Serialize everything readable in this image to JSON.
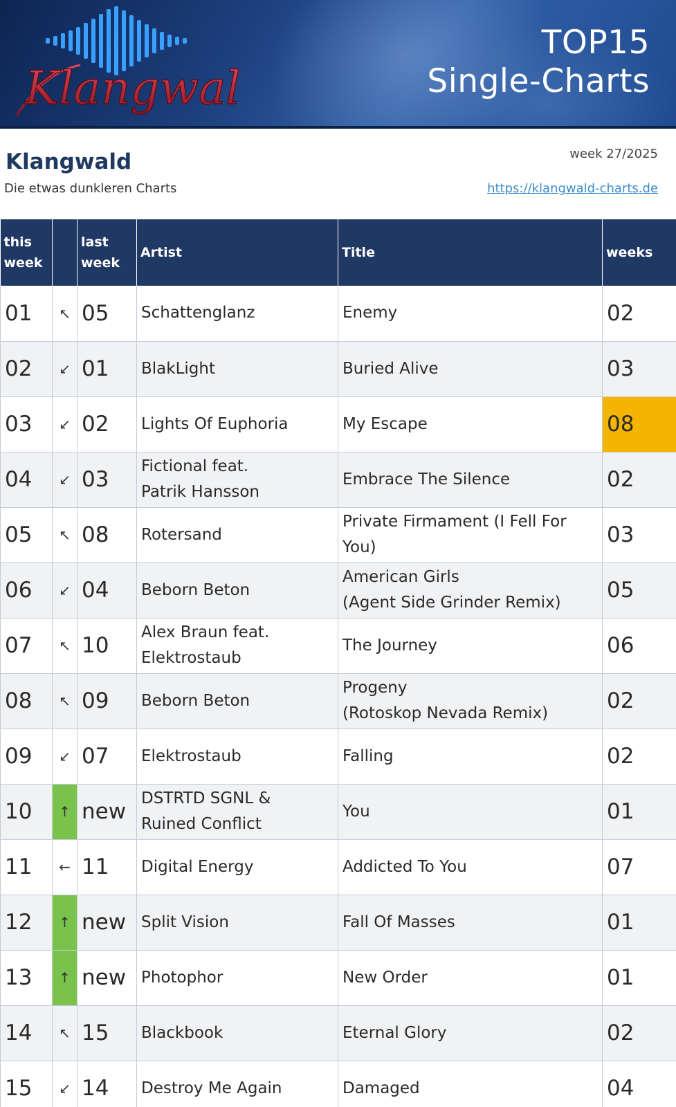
{
  "banner": {
    "logo_text": "Klangwald",
    "title_line1": "TOP15",
    "title_line2": "Single-Charts"
  },
  "header": {
    "site_name": "Klangwald",
    "tagline": "Die etwas dunkleren Charts",
    "week": "week 27/2025",
    "link": "https://klangwald-charts.de"
  },
  "table": {
    "columns": {
      "this_week": [
        "this",
        "week"
      ],
      "last_week": [
        "last",
        "week"
      ],
      "artist": "Artist",
      "title": "Title",
      "weeks": "weeks"
    },
    "rows": [
      {
        "pos": "01",
        "trend": "↖",
        "last": "05",
        "artist": "Schattenglanz",
        "title": "Enemy",
        "weeks": "02"
      },
      {
        "pos": "02",
        "trend": "↙",
        "last": "01",
        "artist": "BlakLight",
        "title": "Buried Alive",
        "weeks": "03"
      },
      {
        "pos": "03",
        "trend": "↙",
        "last": "02",
        "artist": "Lights Of Euphoria",
        "title": "My Escape",
        "weeks": "08",
        "weeks_highlight": true
      },
      {
        "pos": "04",
        "trend": "↙",
        "last": "03",
        "artist": "Fictional feat.\nPatrik Hansson",
        "title": "Embrace The Silence",
        "weeks": "02"
      },
      {
        "pos": "05",
        "trend": "↖",
        "last": "08",
        "artist": "Rotersand",
        "title": "Private Firmament (I Fell For You)",
        "weeks": "03"
      },
      {
        "pos": "06",
        "trend": "↙",
        "last": "04",
        "artist": "Beborn Beton",
        "title": "American Girls\n(Agent Side Grinder Remix)",
        "weeks": "05"
      },
      {
        "pos": "07",
        "trend": "↖",
        "last": "10",
        "artist": "Alex Braun feat.\nElektrostaub",
        "title": "The Journey",
        "weeks": "06"
      },
      {
        "pos": "08",
        "trend": "↖",
        "last": "09",
        "artist": "Beborn Beton",
        "title": "Progeny\n(Rotoskop Nevada Remix)",
        "weeks": "02"
      },
      {
        "pos": "09",
        "trend": "↙",
        "last": "07",
        "artist": "Elektrostaub",
        "title": "Falling",
        "weeks": "02"
      },
      {
        "pos": "10",
        "trend": "↑",
        "last": "new",
        "artist": "DSTRTD SGNL &\nRuined Conflict",
        "title": "You",
        "weeks": "01",
        "new_entry": true
      },
      {
        "pos": "11",
        "trend": "←",
        "last": "11",
        "artist": "Digital Energy",
        "title": "Addicted To You",
        "weeks": "07"
      },
      {
        "pos": "12",
        "trend": "↑",
        "last": "new",
        "artist": "Split Vision",
        "title": "Fall Of Masses",
        "weeks": "01",
        "new_entry": true
      },
      {
        "pos": "13",
        "trend": "↑",
        "last": "new",
        "artist": "Photophor",
        "title": "New Order",
        "weeks": "01",
        "new_entry": true
      },
      {
        "pos": "14",
        "trend": "↖",
        "last": "15",
        "artist": "Blackbook",
        "title": "Eternal Glory",
        "weeks": "02"
      },
      {
        "pos": "15",
        "trend": "↙",
        "last": "14",
        "artist": "Destroy Me Again",
        "title": "Damaged",
        "weeks": "04"
      }
    ]
  },
  "colors": {
    "banner_blue": "#1d3f7d",
    "header_navy": "#203864",
    "site_name": "#1f3a60",
    "link": "#3d8ccc",
    "new_entry_green": "#79c34c",
    "weeks_highlight_orange": "#f4b400",
    "logo_red": "#b0202a",
    "row_alt": "#f1f2f4"
  }
}
